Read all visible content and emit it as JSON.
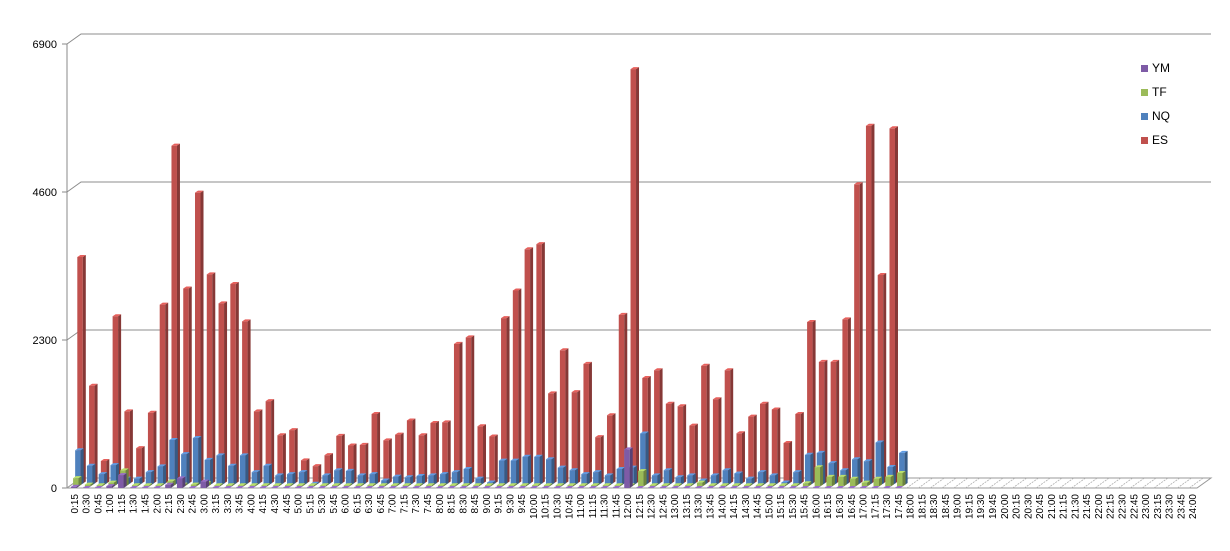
{
  "chart_data": {
    "type": "bar",
    "ylim": [
      0,
      6900
    ],
    "yticks": [
      "0",
      "2300",
      "4600",
      "6900"
    ],
    "legend_position": "right",
    "grid": true,
    "categories": [
      "0:15",
      "0:30",
      "0:45",
      "1:00",
      "1:15",
      "1:30",
      "1:45",
      "2:00",
      "2:15",
      "2:30",
      "2:45",
      "3:00",
      "3:15",
      "3:30",
      "3:45",
      "4:00",
      "4:15",
      "4:30",
      "4:45",
      "5:00",
      "5:15",
      "5:30",
      "5:45",
      "6:00",
      "6:15",
      "6:30",
      "6:45",
      "7:00",
      "7:15",
      "7:30",
      "7:45",
      "8:00",
      "8:15",
      "8:30",
      "8:45",
      "9:00",
      "9:15",
      "9:30",
      "9:45",
      "10:00",
      "10:15",
      "10:30",
      "10:45",
      "11:00",
      "11:15",
      "11:30",
      "11:45",
      "12:00",
      "12:15",
      "12:30",
      "12:45",
      "13:00",
      "13:15",
      "13:30",
      "13:45",
      "14:00",
      "14:15",
      "14:30",
      "14:45",
      "15:00",
      "15:15",
      "15:30",
      "15:45",
      "16:00",
      "16:15",
      "16:30",
      "16:45",
      "17:00",
      "17:15",
      "17:30",
      "17:45",
      "18:00",
      "18:15",
      "18:30",
      "18:45",
      "19:00",
      "19:15",
      "19:30",
      "19:45",
      "20:00",
      "20:15",
      "20:30",
      "20:45",
      "21:00",
      "21:15",
      "21:30",
      "21:45",
      "22:00",
      "22:15",
      "22:30",
      "22:45",
      "23:00",
      "23:15",
      "23:30",
      "23:45",
      "24:00"
    ],
    "series": [
      {
        "name": "YM",
        "color": "#7E5BA6",
        "values": [
          20,
          0,
          0,
          30,
          200,
          0,
          0,
          0,
          50,
          150,
          0,
          100,
          0,
          0,
          0,
          0,
          0,
          0,
          0,
          0,
          0,
          0,
          0,
          0,
          0,
          0,
          0,
          0,
          0,
          0,
          0,
          0,
          0,
          0,
          0,
          0,
          0,
          0,
          0,
          0,
          0,
          0,
          0,
          0,
          0,
          0,
          0,
          600,
          0,
          0,
          0,
          0,
          0,
          0,
          0,
          0,
          0,
          0,
          0,
          0,
          0,
          0,
          0,
          0,
          0,
          0,
          0,
          0,
          0,
          0,
          0,
          null,
          null,
          null,
          null,
          null,
          null,
          null,
          null,
          null,
          null,
          null,
          null,
          null,
          null,
          null,
          null,
          null,
          null,
          null,
          null,
          null,
          null,
          null,
          null,
          null
        ]
      },
      {
        "name": "TF",
        "color": "#9BBB59",
        "values": [
          130,
          30,
          20,
          60,
          250,
          20,
          20,
          20,
          80,
          30,
          30,
          50,
          20,
          20,
          20,
          20,
          20,
          20,
          20,
          20,
          20,
          20,
          20,
          20,
          20,
          20,
          20,
          20,
          20,
          20,
          20,
          20,
          20,
          20,
          20,
          20,
          20,
          20,
          20,
          20,
          20,
          20,
          20,
          20,
          20,
          20,
          20,
          20,
          240,
          20,
          20,
          20,
          20,
          60,
          20,
          20,
          20,
          20,
          20,
          20,
          20,
          20,
          50,
          300,
          150,
          150,
          120,
          60,
          120,
          150,
          210,
          null,
          null,
          null,
          null,
          null,
          null,
          null,
          null,
          null,
          null,
          null,
          null,
          null,
          null,
          null,
          null,
          null,
          null,
          null,
          null,
          null,
          null,
          null,
          null,
          null
        ]
      },
      {
        "name": "NQ",
        "color": "#4F81BD",
        "values": [
          540,
          300,
          170,
          310,
          100,
          100,
          200,
          290,
          700,
          480,
          730,
          390,
          460,
          300,
          460,
          200,
          300,
          150,
          170,
          200,
          20,
          150,
          230,
          220,
          150,
          170,
          70,
          130,
          120,
          140,
          150,
          170,
          200,
          250,
          100,
          40,
          380,
          380,
          440,
          440,
          400,
          270,
          230,
          170,
          200,
          150,
          250,
          270,
          800,
          150,
          230,
          120,
          150,
          70,
          150,
          230,
          180,
          100,
          200,
          150,
          40,
          200,
          470,
          500,
          340,
          230,
          400,
          370,
          660,
          280,
          500,
          null,
          null,
          null,
          null,
          null,
          null,
          null,
          null,
          null,
          null,
          null,
          null,
          null,
          null,
          null,
          null,
          null,
          null,
          null,
          null,
          null,
          null,
          null,
          null,
          null
        ]
      },
      {
        "name": "ES",
        "color": "#C0504D",
        "values": [
          3520,
          1520,
          350,
          2600,
          1120,
          550,
          1100,
          2780,
          5250,
          3030,
          4520,
          3250,
          2800,
          3100,
          2520,
          1120,
          1280,
          750,
          830,
          360,
          270,
          440,
          740,
          590,
          600,
          1080,
          670,
          760,
          980,
          750,
          940,
          950,
          2170,
          2270,
          890,
          730,
          2570,
          3000,
          3640,
          3720,
          1400,
          2070,
          1420,
          1860,
          720,
          1060,
          2620,
          6440,
          1640,
          1760,
          1240,
          1200,
          900,
          1830,
          1310,
          1760,
          780,
          1040,
          1240,
          1150,
          630,
          1080,
          2510,
          1890,
          1890,
          2550,
          4650,
          5560,
          3240,
          5520,
          null,
          null,
          null,
          null,
          null,
          null,
          null,
          null,
          null,
          null,
          null,
          null,
          null,
          null,
          null,
          null,
          null,
          null,
          null,
          null,
          null,
          null,
          null,
          null,
          null,
          null
        ]
      }
    ]
  }
}
